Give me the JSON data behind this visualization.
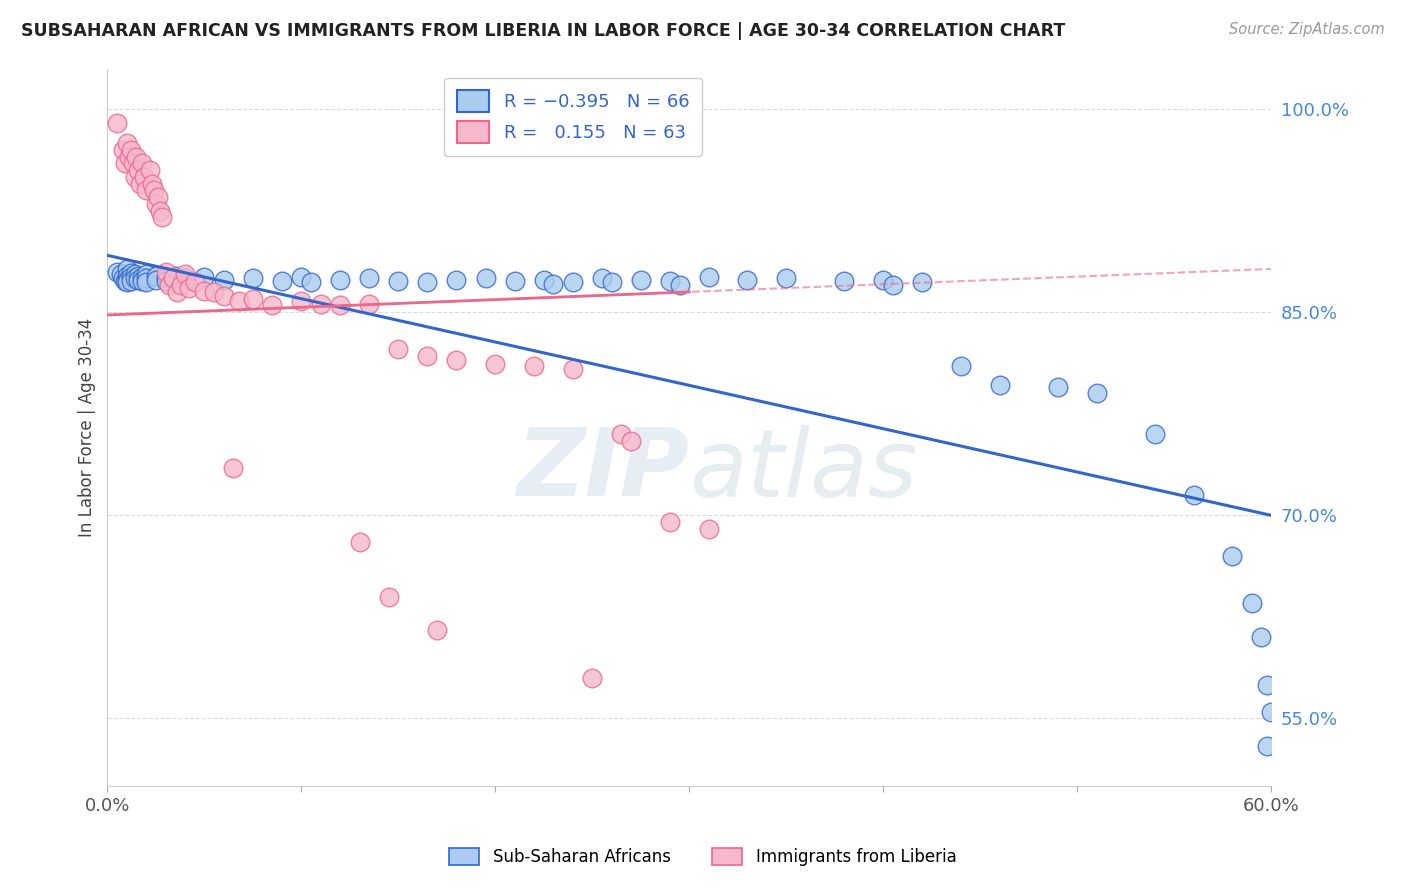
{
  "title": "SUBSAHARAN AFRICAN VS IMMIGRANTS FROM LIBERIA IN LABOR FORCE | AGE 30-34 CORRELATION CHART",
  "source": "Source: ZipAtlas.com",
  "ylabel": "In Labor Force | Age 30-34",
  "xlim": [
    0.0,
    0.6
  ],
  "ylim": [
    0.5,
    1.03
  ],
  "blue_color": "#aaccee",
  "pink_color": "#f5b8cc",
  "blue_line_color": "#3366cc",
  "pink_line_color": "#ee6688",
  "watermark_zip": "ZIP",
  "watermark_atlas": "atlas",
  "background_color": "#ffffff",
  "grid_color": "#cccccc",
  "blue_scatter": [
    [
      0.005,
      0.88
    ],
    [
      0.007,
      0.878
    ],
    [
      0.008,
      0.875
    ],
    [
      0.009,
      0.873
    ],
    [
      0.01,
      0.882
    ],
    [
      0.01,
      0.877
    ],
    [
      0.01,
      0.874
    ],
    [
      0.01,
      0.872
    ],
    [
      0.012,
      0.879
    ],
    [
      0.012,
      0.876
    ],
    [
      0.012,
      0.873
    ],
    [
      0.014,
      0.878
    ],
    [
      0.014,
      0.875
    ],
    [
      0.016,
      0.877
    ],
    [
      0.016,
      0.874
    ],
    [
      0.018,
      0.876
    ],
    [
      0.018,
      0.873
    ],
    [
      0.02,
      0.878
    ],
    [
      0.02,
      0.875
    ],
    [
      0.02,
      0.872
    ],
    [
      0.025,
      0.877
    ],
    [
      0.025,
      0.874
    ],
    [
      0.03,
      0.876
    ],
    [
      0.03,
      0.873
    ],
    [
      0.035,
      0.877
    ],
    [
      0.04,
      0.875
    ],
    [
      0.04,
      0.872
    ],
    [
      0.05,
      0.876
    ],
    [
      0.06,
      0.874
    ],
    [
      0.075,
      0.875
    ],
    [
      0.09,
      0.873
    ],
    [
      0.1,
      0.876
    ],
    [
      0.105,
      0.872
    ],
    [
      0.12,
      0.874
    ],
    [
      0.135,
      0.875
    ],
    [
      0.15,
      0.873
    ],
    [
      0.165,
      0.872
    ],
    [
      0.18,
      0.874
    ],
    [
      0.195,
      0.875
    ],
    [
      0.21,
      0.873
    ],
    [
      0.225,
      0.874
    ],
    [
      0.23,
      0.871
    ],
    [
      0.24,
      0.872
    ],
    [
      0.255,
      0.875
    ],
    [
      0.26,
      0.872
    ],
    [
      0.275,
      0.874
    ],
    [
      0.29,
      0.873
    ],
    [
      0.295,
      0.87
    ],
    [
      0.31,
      0.876
    ],
    [
      0.33,
      0.874
    ],
    [
      0.35,
      0.875
    ],
    [
      0.38,
      0.873
    ],
    [
      0.4,
      0.874
    ],
    [
      0.405,
      0.87
    ],
    [
      0.42,
      0.872
    ],
    [
      0.44,
      0.81
    ],
    [
      0.46,
      0.796
    ],
    [
      0.49,
      0.795
    ],
    [
      0.51,
      0.79
    ],
    [
      0.54,
      0.76
    ],
    [
      0.56,
      0.715
    ],
    [
      0.58,
      0.67
    ],
    [
      0.59,
      0.635
    ],
    [
      0.595,
      0.61
    ],
    [
      0.598,
      0.575
    ],
    [
      0.6,
      0.555
    ],
    [
      0.598,
      0.53
    ]
  ],
  "pink_scatter": [
    [
      0.005,
      0.99
    ],
    [
      0.008,
      0.97
    ],
    [
      0.009,
      0.96
    ],
    [
      0.01,
      0.975
    ],
    [
      0.011,
      0.965
    ],
    [
      0.012,
      0.97
    ],
    [
      0.013,
      0.96
    ],
    [
      0.014,
      0.95
    ],
    [
      0.015,
      0.965
    ],
    [
      0.016,
      0.955
    ],
    [
      0.017,
      0.945
    ],
    [
      0.018,
      0.96
    ],
    [
      0.019,
      0.95
    ],
    [
      0.02,
      0.94
    ],
    [
      0.022,
      0.955
    ],
    [
      0.023,
      0.945
    ],
    [
      0.024,
      0.94
    ],
    [
      0.025,
      0.93
    ],
    [
      0.026,
      0.935
    ],
    [
      0.027,
      0.925
    ],
    [
      0.028,
      0.92
    ],
    [
      0.03,
      0.88
    ],
    [
      0.032,
      0.87
    ],
    [
      0.034,
      0.875
    ],
    [
      0.036,
      0.865
    ],
    [
      0.038,
      0.87
    ],
    [
      0.04,
      0.878
    ],
    [
      0.042,
      0.868
    ],
    [
      0.045,
      0.872
    ],
    [
      0.05,
      0.866
    ],
    [
      0.055,
      0.865
    ],
    [
      0.06,
      0.862
    ],
    [
      0.068,
      0.858
    ],
    [
      0.075,
      0.86
    ],
    [
      0.085,
      0.855
    ],
    [
      0.1,
      0.858
    ],
    [
      0.11,
      0.856
    ],
    [
      0.12,
      0.855
    ],
    [
      0.135,
      0.856
    ],
    [
      0.15,
      0.823
    ],
    [
      0.165,
      0.818
    ],
    [
      0.18,
      0.815
    ],
    [
      0.2,
      0.812
    ],
    [
      0.22,
      0.81
    ],
    [
      0.24,
      0.808
    ],
    [
      0.265,
      0.76
    ],
    [
      0.27,
      0.755
    ],
    [
      0.29,
      0.695
    ],
    [
      0.31,
      0.69
    ],
    [
      0.065,
      0.735
    ],
    [
      0.13,
      0.68
    ],
    [
      0.145,
      0.64
    ],
    [
      0.17,
      0.615
    ],
    [
      0.25,
      0.58
    ]
  ],
  "blue_line": [
    [
      0.0,
      0.892
    ],
    [
      0.6,
      0.7
    ]
  ],
  "pink_line": [
    [
      0.0,
      0.848
    ],
    [
      0.3,
      0.865
    ]
  ],
  "pink_line_dashed": [
    [
      0.0,
      0.848
    ],
    [
      0.6,
      0.882
    ]
  ]
}
